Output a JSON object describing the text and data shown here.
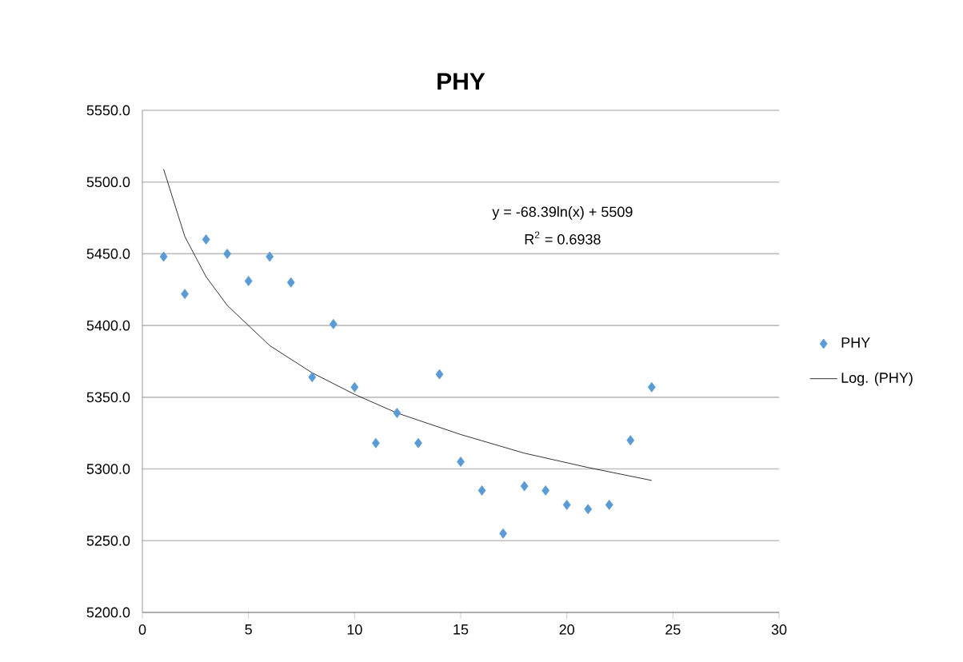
{
  "chart_data": {
    "type": "scatter",
    "title": "PHY",
    "series": [
      {
        "name": "PHY",
        "color": "#5b9bd5",
        "x": [
          1,
          2,
          3,
          4,
          5,
          6,
          7,
          8,
          9,
          10,
          11,
          12,
          13,
          14,
          15,
          16,
          17,
          18,
          19,
          20,
          21,
          22,
          23,
          24
        ],
        "values": [
          5448,
          5422,
          5460,
          5450,
          5431,
          5448,
          5430,
          5364,
          5401,
          5357,
          5318,
          5339,
          5318,
          5366,
          5305,
          5285,
          5255,
          5288,
          5285,
          5275,
          5272,
          5275,
          5320,
          5357
        ]
      },
      {
        "name": "Log. (PHY)",
        "type": "line",
        "color": "#000000",
        "marker": "none",
        "x": [
          1,
          2,
          3,
          4,
          6,
          8,
          10,
          12,
          15,
          18,
          21,
          24
        ],
        "values": [
          5509,
          5462,
          5434,
          5414,
          5386,
          5367,
          5352,
          5339,
          5324,
          5311,
          5301,
          5292
        ]
      }
    ],
    "marker": "diamond",
    "xlim": [
      0,
      30
    ],
    "xticks": [
      0,
      5,
      10,
      15,
      20,
      25,
      30
    ],
    "ylim": [
      5200,
      5550
    ],
    "yticks": [
      {
        "value": 5200,
        "label": "5200.0"
      },
      {
        "value": 5250,
        "label": "5250.0"
      },
      {
        "value": 5300,
        "label": "5300.0"
      },
      {
        "value": 5350,
        "label": "5350.0"
      },
      {
        "value": 5400,
        "label": "5400.0"
      },
      {
        "value": 5450,
        "label": "5450.0"
      },
      {
        "value": 5500,
        "label": "5500.0"
      },
      {
        "value": 5550,
        "label": "5550.0"
      }
    ],
    "grid": "y",
    "legend": "right",
    "annotations": [
      "y = -68.39ln(x) + 5509",
      "R$^{2}$ = 0.6938"
    ]
  }
}
